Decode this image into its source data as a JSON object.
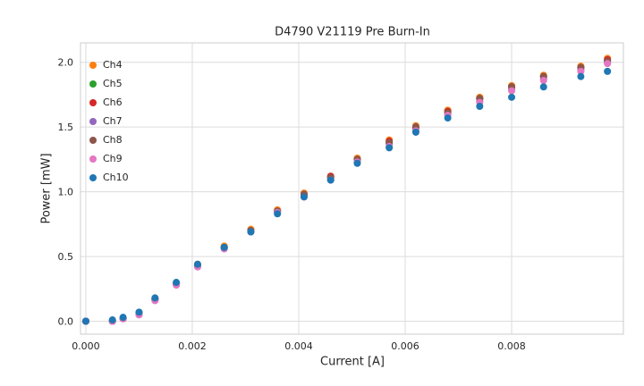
{
  "chart_data": {
    "type": "scatter",
    "title": "D4790 V21119 Pre Burn-In",
    "xlabel": "Current [A]",
    "ylabel": "Power [mW]",
    "xlim": [
      -0.0001,
      0.0101
    ],
    "ylim": [
      -0.1,
      2.15
    ],
    "grid": true,
    "legend_position": "upper left",
    "xticks": [
      0.0,
      0.002,
      0.004,
      0.006,
      0.008
    ],
    "xtick_labels": [
      "0.000",
      "0.002",
      "0.004",
      "0.006",
      "0.008"
    ],
    "yticks": [
      0.0,
      0.5,
      1.0,
      1.5,
      2.0
    ],
    "ytick_labels": [
      "0.0",
      "0.5",
      "1.0",
      "1.5",
      "2.0"
    ],
    "x": [
      0.0,
      0.0005,
      0.0007,
      0.001,
      0.0013,
      0.0017,
      0.0021,
      0.0026,
      0.0031,
      0.0036,
      0.0041,
      0.0046,
      0.0051,
      0.0057,
      0.0062,
      0.0068,
      0.0074,
      0.008,
      0.0086,
      0.0093,
      0.0098
    ],
    "series": [
      {
        "name": "Ch4",
        "color": "#ff7f0e",
        "values": [
          0.0,
          0.0,
          0.02,
          0.06,
          0.17,
          0.29,
          0.44,
          0.58,
          0.71,
          0.86,
          0.99,
          1.12,
          1.26,
          1.4,
          1.51,
          1.63,
          1.73,
          1.82,
          1.9,
          1.97,
          2.03
        ]
      },
      {
        "name": "Ch5",
        "color": "#2ca02c",
        "values": [
          0.0,
          0.0,
          0.02,
          0.06,
          0.17,
          0.29,
          0.43,
          0.57,
          0.7,
          0.85,
          0.98,
          1.11,
          1.25,
          1.38,
          1.5,
          1.62,
          1.72,
          1.81,
          1.89,
          1.96,
          2.01
        ]
      },
      {
        "name": "Ch6",
        "color": "#d62728",
        "values": [
          0.0,
          0.0,
          0.02,
          0.06,
          0.17,
          0.29,
          0.43,
          0.57,
          0.7,
          0.85,
          0.98,
          1.12,
          1.25,
          1.39,
          1.5,
          1.62,
          1.72,
          1.81,
          1.89,
          1.96,
          2.02
        ]
      },
      {
        "name": "Ch7",
        "color": "#9467bd",
        "values": [
          0.0,
          0.0,
          0.02,
          0.05,
          0.16,
          0.28,
          0.42,
          0.56,
          0.69,
          0.84,
          0.97,
          1.1,
          1.24,
          1.37,
          1.48,
          1.6,
          1.7,
          1.79,
          1.87,
          1.94,
          2.0
        ]
      },
      {
        "name": "Ch8",
        "color": "#8c564b",
        "values": [
          0.0,
          0.0,
          0.02,
          0.06,
          0.17,
          0.29,
          0.43,
          0.57,
          0.7,
          0.85,
          0.98,
          1.11,
          1.25,
          1.38,
          1.5,
          1.61,
          1.72,
          1.81,
          1.89,
          1.96,
          2.01
        ]
      },
      {
        "name": "Ch9",
        "color": "#e377c2",
        "values": [
          0.0,
          0.0,
          0.02,
          0.05,
          0.16,
          0.28,
          0.42,
          0.56,
          0.69,
          0.84,
          0.96,
          1.09,
          1.23,
          1.35,
          1.47,
          1.59,
          1.69,
          1.78,
          1.86,
          1.93,
          1.99
        ]
      },
      {
        "name": "Ch10",
        "color": "#1f77b4",
        "values": [
          0.0,
          0.01,
          0.03,
          0.07,
          0.18,
          0.3,
          0.44,
          0.57,
          0.69,
          0.83,
          0.96,
          1.09,
          1.22,
          1.34,
          1.46,
          1.57,
          1.66,
          1.73,
          1.81,
          1.89,
          1.93
        ]
      }
    ],
    "style": {
      "grid_color": "#dcdcdc",
      "border_color": "#cccccc",
      "text_color": "#262626",
      "marker_radius": 4
    }
  }
}
